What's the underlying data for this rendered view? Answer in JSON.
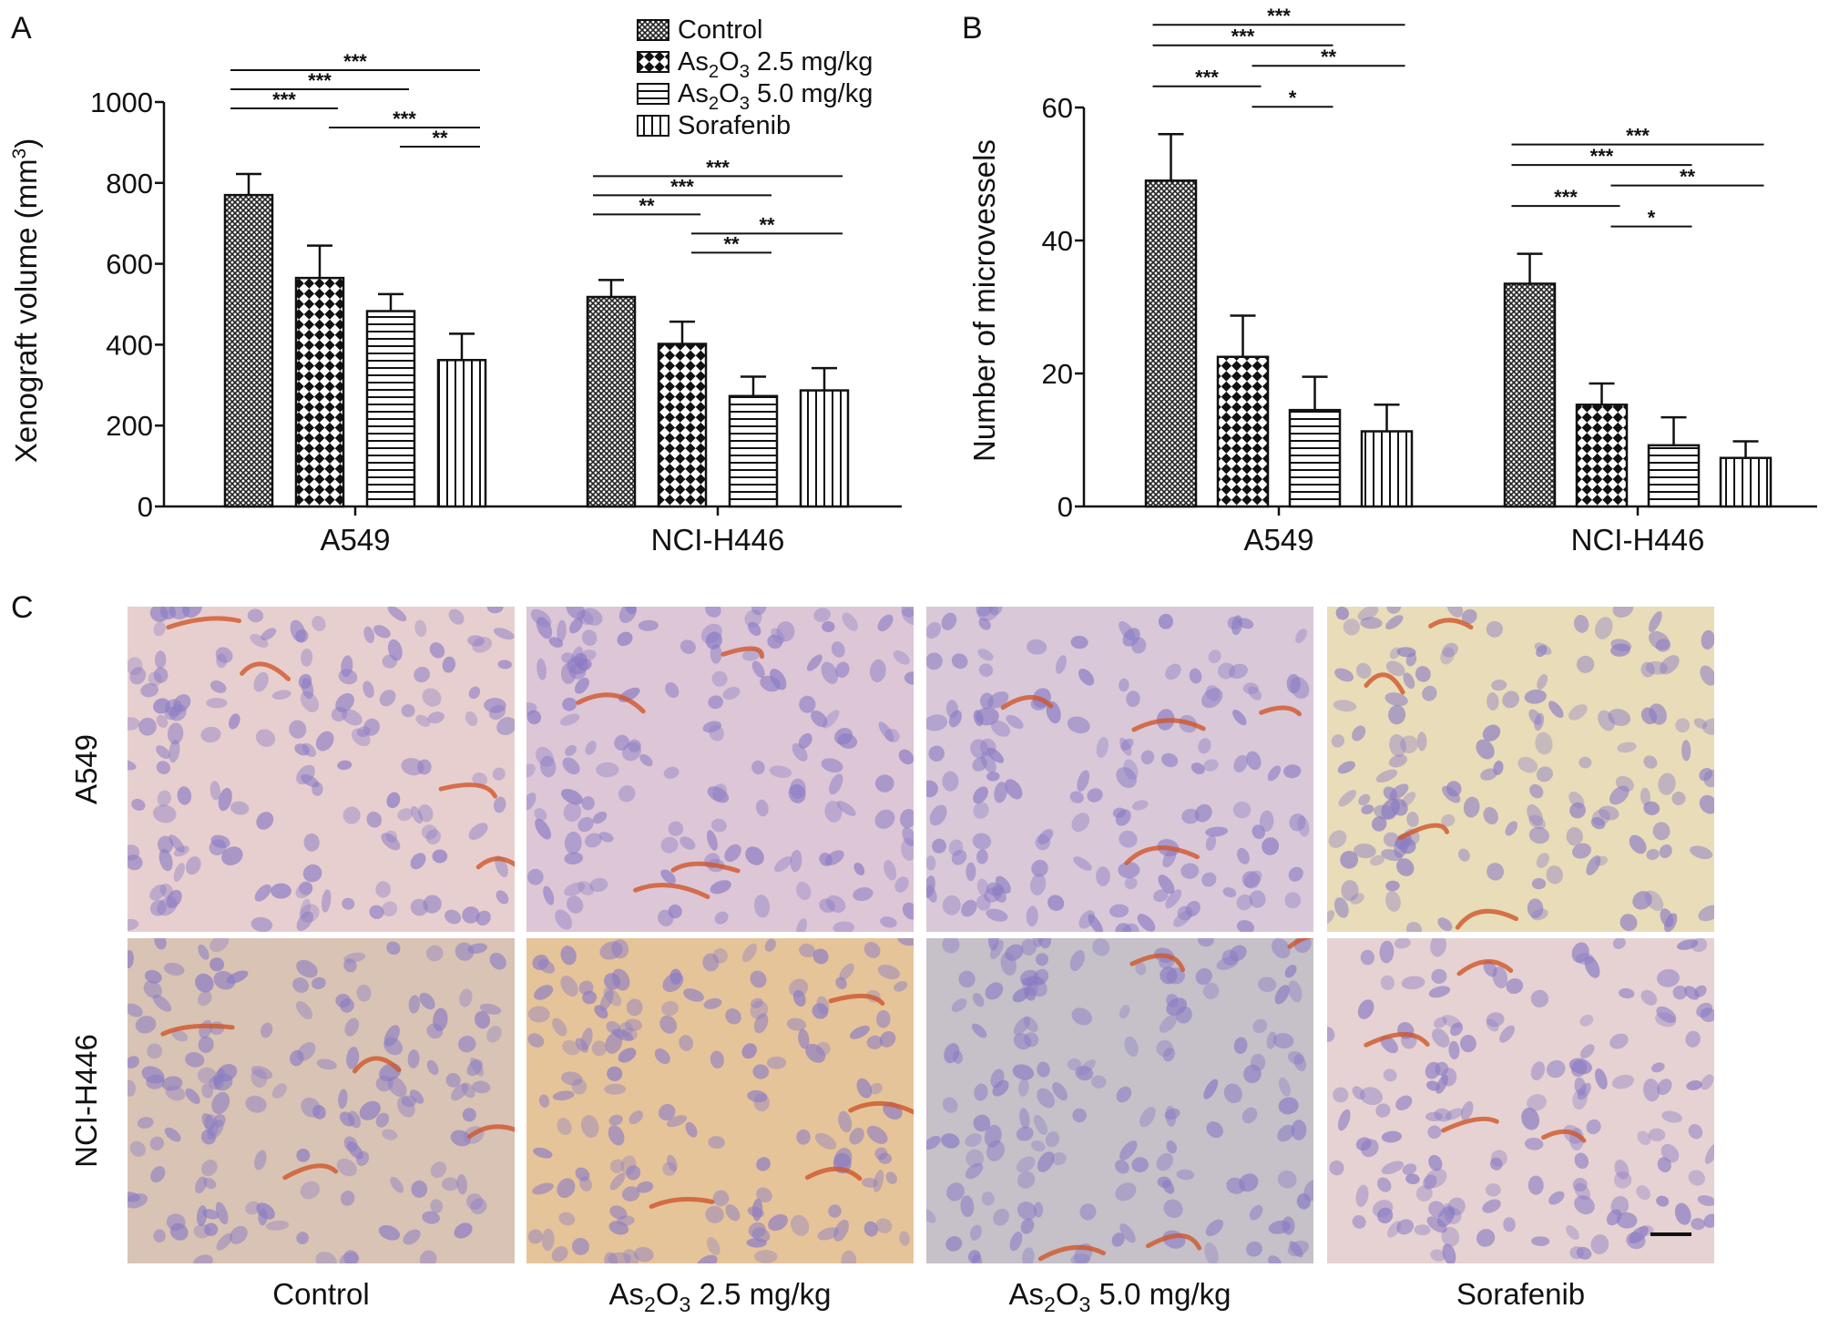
{
  "panel_labels": {
    "a": "A",
    "b": "B",
    "c": "C"
  },
  "legend": {
    "items": [
      {
        "base": "Control",
        "sub": "",
        "rest": ""
      },
      {
        "base": "As",
        "sub": "2",
        "mid": "O",
        "sub2": "3",
        "rest": " 2.5 mg/kg"
      },
      {
        "base": "As",
        "sub": "2",
        "mid": "O",
        "sub2": "3",
        "rest": " 5.0 mg/kg"
      },
      {
        "base": "Sorafenib",
        "sub": "",
        "rest": ""
      }
    ]
  },
  "chart_data": [
    {
      "type": "bar",
      "panel": "A",
      "ylabel": "Xenograft volume (mm3)",
      "ylabel_parts": {
        "main": "Xenograft volume (mm",
        "sup": "3",
        "end": ")"
      },
      "categories": [
        "A549",
        "NCI-H446"
      ],
      "ylim": [
        0,
        1000
      ],
      "yticks": [
        0,
        200,
        400,
        600,
        800,
        1000
      ],
      "series": [
        {
          "name": "Control",
          "values": [
            770,
            518
          ],
          "errors": [
            52,
            42
          ]
        },
        {
          "name": "As2O3 2.5 mg/kg",
          "values": [
            565,
            402
          ],
          "errors": [
            80,
            55
          ]
        },
        {
          "name": "As2O3 5.0 mg/kg",
          "values": [
            483,
            273
          ],
          "errors": [
            42,
            48
          ]
        },
        {
          "name": "Sorafenib",
          "values": [
            362,
            287
          ],
          "errors": [
            65,
            55
          ]
        }
      ],
      "significance": [
        {
          "group": 0,
          "from": 0,
          "to": 3,
          "label": "***"
        },
        {
          "group": 0,
          "from": 0,
          "to": 2,
          "label": "***"
        },
        {
          "group": 0,
          "from": 0,
          "to": 1,
          "label": "***"
        },
        {
          "group": 0,
          "from": 1,
          "to": 3,
          "label": "***"
        },
        {
          "group": 0,
          "from": 2,
          "to": 3,
          "label": "**"
        },
        {
          "group": 1,
          "from": 0,
          "to": 3,
          "label": "***"
        },
        {
          "group": 1,
          "from": 0,
          "to": 2,
          "label": "***"
        },
        {
          "group": 1,
          "from": 0,
          "to": 1,
          "label": "**"
        },
        {
          "group": 1,
          "from": 1,
          "to": 3,
          "label": "**"
        },
        {
          "group": 1,
          "from": 1,
          "to": 2,
          "label": "**"
        }
      ]
    },
    {
      "type": "bar",
      "panel": "B",
      "ylabel": "Number of microvessels",
      "categories": [
        "A549",
        "NCI-H446"
      ],
      "ylim": [
        0,
        60
      ],
      "yticks": [
        0,
        20,
        40,
        60
      ],
      "series": [
        {
          "name": "Control",
          "values": [
            49,
            33.5
          ],
          "errors": [
            7,
            4.5
          ]
        },
        {
          "name": "As2O3 2.5 mg/kg",
          "values": [
            22.5,
            15.3
          ],
          "errors": [
            6.2,
            3.2
          ]
        },
        {
          "name": "As2O3 5.0 mg/kg",
          "values": [
            14.5,
            9.2
          ],
          "errors": [
            5,
            4.2
          ]
        },
        {
          "name": "Sorafenib",
          "values": [
            11.3,
            7.3
          ],
          "errors": [
            4,
            2.5
          ]
        }
      ],
      "significance": [
        {
          "group": 0,
          "from": 0,
          "to": 3,
          "label": "***"
        },
        {
          "group": 0,
          "from": 0,
          "to": 2,
          "label": "***"
        },
        {
          "group": 0,
          "from": 1,
          "to": 3,
          "label": "**"
        },
        {
          "group": 0,
          "from": 0,
          "to": 1,
          "label": "***"
        },
        {
          "group": 0,
          "from": 1,
          "to": 2,
          "label": "*"
        },
        {
          "group": 1,
          "from": 0,
          "to": 3,
          "label": "***"
        },
        {
          "group": 1,
          "from": 0,
          "to": 2,
          "label": "***"
        },
        {
          "group": 1,
          "from": 1,
          "to": 3,
          "label": "**"
        },
        {
          "group": 1,
          "from": 0,
          "to": 1,
          "label": "***"
        },
        {
          "group": 1,
          "from": 1,
          "to": 2,
          "label": "*"
        }
      ]
    }
  ],
  "micrographs": {
    "rows": [
      "A549",
      "NCI-H446"
    ],
    "columns": [
      {
        "base": "Control"
      },
      {
        "base": "As",
        "sub": "2",
        "mid": "O",
        "sub2": "3",
        "rest": " 2.5 mg/kg"
      },
      {
        "base": "As",
        "sub": "2",
        "mid": "O",
        "sub2": "3",
        "rest": " 5.0 mg/kg"
      },
      {
        "base": "Sorafenib"
      }
    ],
    "tones": [
      [
        "#e8cfcf",
        "#ddc6d6",
        "#d9c8d8",
        "#e9dcb9"
      ],
      [
        "#d9c3b4",
        "#e6c49a",
        "#c6c0c8",
        "#e6d2d2"
      ]
    ],
    "cell_color": "#8a7bc4",
    "vessel_color": "#d0562a"
  }
}
